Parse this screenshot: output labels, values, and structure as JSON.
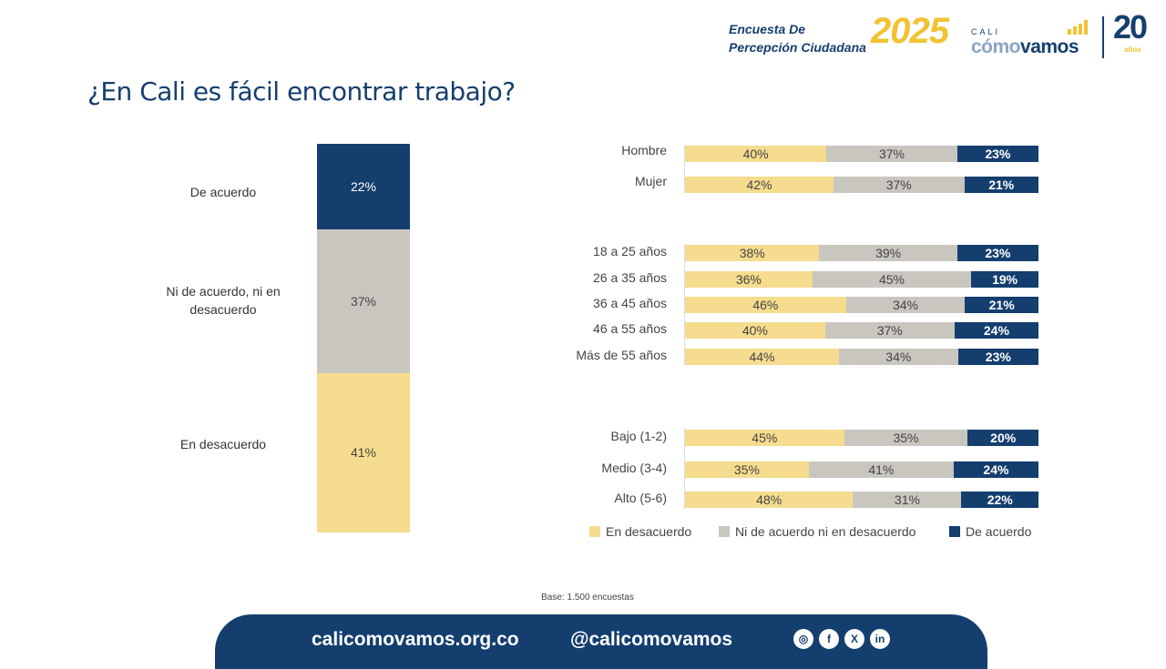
{
  "header": {
    "survey_title_line1": "Encuesta De",
    "survey_title_line2": "Percepción Ciudadana",
    "survey_year": "2025",
    "brand_small": "CALI",
    "brand_main_a": "cómo",
    "brand_main_b": "vamos",
    "anniversary": "20",
    "anniversary_small": "años"
  },
  "title": "¿En Cali es fácil encontrar trabajo?",
  "colors": {
    "en_desacuerdo": "#F5DC8E",
    "ni": "#C9C6C0",
    "de_acuerdo": "#143E6E"
  },
  "chart_data": [
    {
      "type": "bar",
      "stacked": true,
      "orientation": "vertical",
      "categories": [
        "De acuerdo",
        "Ni de acuerdo, ni en desacuerdo",
        "En desacuerdo"
      ],
      "values": [
        22,
        37,
        41
      ],
      "labels": [
        "22%",
        "37%",
        "41%"
      ]
    },
    {
      "type": "bar",
      "stacked": true,
      "orientation": "horizontal",
      "groups": [
        {
          "categories": [
            "Hombre",
            "Mujer"
          ]
        },
        {
          "categories": [
            "18 a 25 años",
            "26 a 35 años",
            "36 a 45 años",
            "46 a 55 años",
            "Más de 55 años"
          ]
        },
        {
          "categories": [
            "Bajo (1-2)",
            "Medio (3-4)",
            "Alto (5-6)"
          ]
        }
      ],
      "categories": [
        "Hombre",
        "Mujer",
        "18 a 25 años",
        "26 a 35 años",
        "36 a 45 años",
        "46 a 55 años",
        "Más de 55 años",
        "Bajo (1-2)",
        "Medio (3-4)",
        "Alto (5-6)"
      ],
      "series": [
        {
          "name": "En desacuerdo",
          "values": [
            40,
            42,
            38,
            36,
            46,
            40,
            44,
            45,
            35,
            48
          ]
        },
        {
          "name": "Ni de acuerdo ni en desacuerdo",
          "values": [
            37,
            37,
            39,
            45,
            34,
            37,
            34,
            35,
            41,
            31
          ]
        },
        {
          "name": "De acuerdo",
          "values": [
            23,
            21,
            23,
            19,
            21,
            24,
            23,
            20,
            24,
            22
          ]
        }
      ],
      "legend": "bottom"
    }
  ],
  "base_note": "Base: 1.500 encuestas",
  "footer": {
    "website": "calicomovamos.org.co",
    "handle": "@calicomovamos",
    "social_icons": [
      "instagram-icon",
      "facebook-icon",
      "x-icon",
      "linkedin-icon"
    ]
  }
}
